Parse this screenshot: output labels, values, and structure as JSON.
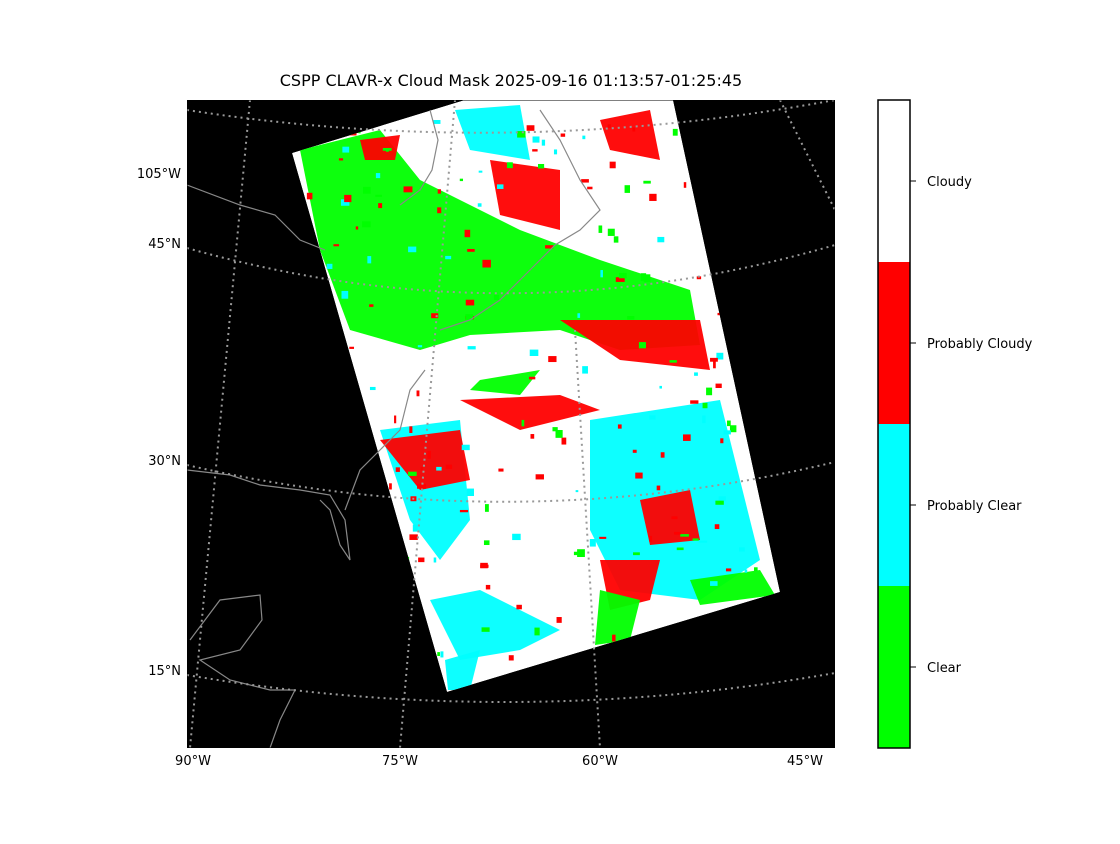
{
  "title": "CSPP CLAVR-x Cloud Mask 2025-09-16 01:13:57-01:25:45",
  "lat_labels": [
    "105°W",
    "45°N",
    "30°N",
    "15°N"
  ],
  "lon_labels": [
    "90°W",
    "75°W",
    "60°W",
    "45°W"
  ],
  "legend": {
    "items": [
      {
        "label": "Cloudy",
        "color": "#ffffff"
      },
      {
        "label": "Probably Cloudy",
        "color": "#ff0000"
      },
      {
        "label": "Probably Clear",
        "color": "#00ffff"
      },
      {
        "label": "Clear",
        "color": "#00ff00"
      }
    ]
  }
}
